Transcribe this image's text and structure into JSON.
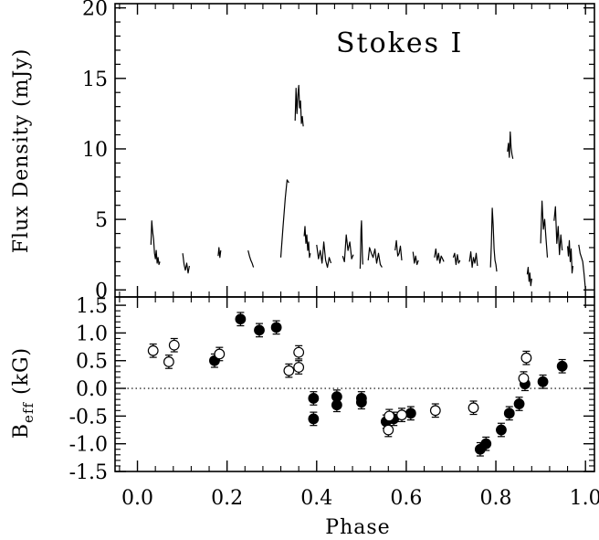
{
  "chart_data": [
    {
      "type": "line",
      "panel": "top",
      "annotation": "Stokes I",
      "ylabel": "Flux Density (mJy)",
      "ylim": [
        -0.5,
        20.3
      ],
      "yticks": [
        0,
        5,
        10,
        15,
        20
      ],
      "xlim": [
        -0.05,
        1.02
      ],
      "grid": false,
      "segments": [
        {
          "x": [
            0.03,
            0.032,
            0.034,
            0.036,
            0.038,
            0.04,
            0.042,
            0.044,
            0.046,
            0.048,
            0.05
          ],
          "y": [
            3.2,
            4.9,
            4.1,
            3.6,
            2.6,
            2.2,
            2.8,
            1.9,
            2.3,
            1.8,
            2.0
          ]
        },
        {
          "x": [
            0.101,
            0.104,
            0.107,
            0.11,
            0.113,
            0.116
          ],
          "y": [
            2.6,
            1.8,
            1.4,
            1.9,
            1.2,
            1.7
          ]
        },
        {
          "x": [
            0.18,
            0.182,
            0.184,
            0.186
          ],
          "y": [
            2.4,
            3.0,
            2.3,
            2.8
          ]
        },
        {
          "x": [
            0.247,
            0.25,
            0.253,
            0.256,
            0.259
          ],
          "y": [
            2.8,
            2.4,
            2.1,
            1.9,
            1.6
          ]
        },
        {
          "x": [
            0.32,
            0.325,
            0.33,
            0.334,
            0.338
          ],
          "y": [
            2.3,
            4.5,
            6.5,
            7.8,
            7.6
          ]
        },
        {
          "x": [
            0.352,
            0.354,
            0.356,
            0.358,
            0.36,
            0.362,
            0.364,
            0.366,
            0.368,
            0.37
          ],
          "y": [
            12.0,
            14.3,
            12.5,
            13.8,
            14.5,
            12.9,
            13.4,
            11.8,
            12.3,
            11.6
          ]
        },
        {
          "x": [
            0.372,
            0.374,
            0.376,
            0.378,
            0.38,
            0.382,
            0.384,
            0.386
          ],
          "y": [
            3.8,
            4.5,
            3.3,
            3.9,
            2.8,
            3.4,
            2.3,
            2.6
          ]
        },
        {
          "x": [
            0.4,
            0.404,
            0.408,
            0.412,
            0.416,
            0.42,
            0.424,
            0.428,
            0.432
          ],
          "y": [
            3.2,
            2.2,
            2.8,
            1.9,
            3.4,
            2.1,
            1.6,
            2.3,
            1.9
          ]
        },
        {
          "x": [
            0.458,
            0.462,
            0.466,
            0.47,
            0.474,
            0.478,
            0.482
          ],
          "y": [
            2.4,
            2.0,
            3.9,
            2.8,
            3.4,
            2.2,
            2.5
          ]
        },
        {
          "x": [
            0.497,
            0.498,
            0.499,
            0.5,
            0.501,
            0.502,
            0.503
          ],
          "y": [
            1.5,
            2.8,
            4.3,
            4.9,
            3.7,
            2.6,
            1.8
          ]
        },
        {
          "x": [
            0.515,
            0.518,
            0.522,
            0.526,
            0.53,
            0.534,
            0.538,
            0.542,
            0.546
          ],
          "y": [
            2.1,
            3.0,
            2.6,
            2.3,
            2.9,
            1.9,
            2.6,
            1.8,
            1.6
          ]
        },
        {
          "x": [
            0.575,
            0.578,
            0.581,
            0.584,
            0.587,
            0.59
          ],
          "y": [
            2.8,
            3.5,
            2.4,
            2.6,
            3.1,
            2.1
          ]
        },
        {
          "x": [
            0.615,
            0.618,
            0.621,
            0.624,
            0.627
          ],
          "y": [
            2.7,
            1.9,
            2.4,
            1.8,
            2.1
          ]
        },
        {
          "x": [
            0.663,
            0.666,
            0.669,
            0.672,
            0.675,
            0.678,
            0.681,
            0.684
          ],
          "y": [
            2.3,
            2.9,
            2.1,
            2.6,
            1.9,
            2.4,
            2.2,
            2.0
          ]
        },
        {
          "x": [
            0.705,
            0.708,
            0.711,
            0.714,
            0.717,
            0.72
          ],
          "y": [
            2.3,
            2.6,
            1.8,
            2.5,
            1.9,
            2.1
          ]
        },
        {
          "x": [
            0.741,
            0.744,
            0.747,
            0.75,
            0.753,
            0.756,
            0.759
          ],
          "y": [
            2.0,
            2.7,
            1.6,
            2.3,
            1.9,
            2.6,
            1.7
          ]
        },
        {
          "x": [
            0.788,
            0.79,
            0.792,
            0.794,
            0.796,
            0.798,
            0.8,
            0.802
          ],
          "y": [
            1.6,
            3.2,
            5.8,
            4.6,
            2.9,
            2.1,
            1.8,
            1.3
          ]
        },
        {
          "x": [
            0.826,
            0.828,
            0.83,
            0.832,
            0.834,
            0.836,
            0.838
          ],
          "y": [
            9.8,
            10.4,
            9.4,
            11.2,
            10.1,
            9.6,
            9.3
          ]
        },
        {
          "x": [
            0.87,
            0.872,
            0.874,
            0.876,
            0.878,
            0.88
          ],
          "y": [
            1.1,
            1.6,
            0.6,
            1.2,
            0.3,
            0.8
          ]
        },
        {
          "x": [
            0.9,
            0.903,
            0.906,
            0.909,
            0.912,
            0.915
          ],
          "y": [
            3.3,
            6.3,
            4.3,
            5.0,
            3.6,
            2.3
          ]
        },
        {
          "x": [
            0.93,
            0.933,
            0.936,
            0.939,
            0.942,
            0.945,
            0.948
          ],
          "y": [
            4.9,
            5.9,
            3.3,
            4.5,
            2.5,
            3.9,
            2.8
          ]
        },
        {
          "x": [
            0.96,
            0.962,
            0.964,
            0.966,
            0.968,
            0.97,
            0.972
          ],
          "y": [
            3.1,
            2.4,
            3.5,
            2.0,
            2.9,
            1.2,
            1.7
          ]
        },
        {
          "x": [
            0.985,
            0.988,
            0.991,
            0.994,
            0.997,
            1.0
          ],
          "y": [
            3.2,
            2.6,
            2.3,
            2.0,
            1.1,
            0.0
          ]
        }
      ]
    },
    {
      "type": "scatter",
      "panel": "bottom",
      "xlabel": "Phase",
      "ylabel": "B",
      "ylabel_sub": "eff",
      "ylabel_unit": "(kG)",
      "ylim": [
        -1.5,
        1.65
      ],
      "yticks": [
        -1.5,
        -1.0,
        -0.5,
        0.0,
        0.5,
        1.0,
        1.5
      ],
      "ytick_labels": [
        "-1.5",
        "-1.0",
        "-0.5",
        "0.0",
        "0.5",
        "1.0",
        "1.5"
      ],
      "xlim": [
        -0.05,
        1.02
      ],
      "xticks": [
        0.0,
        0.2,
        0.4,
        0.6,
        0.8,
        1.0
      ],
      "xtick_labels": [
        "0.0",
        "0.2",
        "0.4",
        "0.6",
        "0.8",
        "1.0"
      ],
      "zero_line": 0.0,
      "grid": false,
      "series": [
        {
          "marker": "filled",
          "points": [
            {
              "x": 0.172,
              "y": 0.5,
              "err": 0.12
            },
            {
              "x": 0.23,
              "y": 1.25,
              "err": 0.12
            },
            {
              "x": 0.272,
              "y": 1.05,
              "err": 0.12
            },
            {
              "x": 0.31,
              "y": 1.1,
              "err": 0.12
            },
            {
              "x": 0.393,
              "y": -0.18,
              "err": 0.12
            },
            {
              "x": 0.393,
              "y": -0.55,
              "err": 0.12
            },
            {
              "x": 0.445,
              "y": -0.15,
              "err": 0.12
            },
            {
              "x": 0.445,
              "y": -0.3,
              "err": 0.12
            },
            {
              "x": 0.5,
              "y": -0.18,
              "err": 0.12
            },
            {
              "x": 0.5,
              "y": -0.25,
              "err": 0.12
            },
            {
              "x": 0.555,
              "y": -0.6,
              "err": 0.12
            },
            {
              "x": 0.572,
              "y": -0.55,
              "err": 0.12
            },
            {
              "x": 0.61,
              "y": -0.45,
              "err": 0.12
            },
            {
              "x": 0.765,
              "y": -1.1,
              "err": 0.12
            },
            {
              "x": 0.778,
              "y": -1.0,
              "err": 0.12
            },
            {
              "x": 0.812,
              "y": -0.75,
              "err": 0.12
            },
            {
              "x": 0.83,
              "y": -0.45,
              "err": 0.12
            },
            {
              "x": 0.852,
              "y": -0.28,
              "err": 0.12
            },
            {
              "x": 0.865,
              "y": 0.08,
              "err": 0.12
            },
            {
              "x": 0.905,
              "y": 0.12,
              "err": 0.12
            },
            {
              "x": 0.948,
              "y": 0.4,
              "err": 0.12
            }
          ]
        },
        {
          "marker": "open",
          "points": [
            {
              "x": 0.035,
              "y": 0.68,
              "err": 0.12
            },
            {
              "x": 0.07,
              "y": 0.48,
              "err": 0.12
            },
            {
              "x": 0.082,
              "y": 0.78,
              "err": 0.12
            },
            {
              "x": 0.183,
              "y": 0.62,
              "err": 0.12
            },
            {
              "x": 0.338,
              "y": 0.32,
              "err": 0.12
            },
            {
              "x": 0.36,
              "y": 0.38,
              "err": 0.12
            },
            {
              "x": 0.36,
              "y": 0.65,
              "err": 0.12
            },
            {
              "x": 0.56,
              "y": -0.75,
              "err": 0.12
            },
            {
              "x": 0.562,
              "y": -0.5,
              "err": 0.12
            },
            {
              "x": 0.59,
              "y": -0.48,
              "err": 0.12
            },
            {
              "x": 0.665,
              "y": -0.4,
              "err": 0.12
            },
            {
              "x": 0.75,
              "y": -0.35,
              "err": 0.12
            },
            {
              "x": 0.862,
              "y": 0.18,
              "err": 0.12
            },
            {
              "x": 0.868,
              "y": 0.55,
              "err": 0.12
            }
          ]
        }
      ]
    }
  ]
}
